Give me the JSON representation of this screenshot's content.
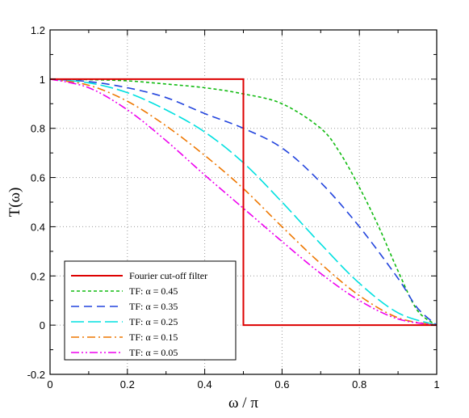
{
  "chart_data": {
    "type": "line",
    "xlabel": "ω / π",
    "ylabel": "T(ω)",
    "xlim": [
      0,
      1
    ],
    "ylim": [
      -0.2,
      1.2
    ],
    "xticks": [
      0,
      0.2,
      0.4,
      0.6,
      0.8,
      1
    ],
    "xtick_labels": [
      "0",
      "0.2",
      "0.4",
      "0.6",
      "0.8",
      "1"
    ],
    "yticks": [
      -0.2,
      0,
      0.2,
      0.4,
      0.6,
      0.8,
      1,
      1.2
    ],
    "ytick_labels": [
      "-0.2",
      "0",
      "0.2",
      "0.4",
      "0.6",
      "0.8",
      "1",
      "1.2"
    ],
    "grid": true,
    "legend_position": "bottom-left",
    "series": [
      {
        "name": "Fourier cut-off filter",
        "color": "#dd0000",
        "dash": "solid",
        "x": [
          0,
          0.5,
          0.5,
          1
        ],
        "y": [
          1,
          1,
          0,
          0
        ]
      },
      {
        "name": "TF: α = 0.45",
        "color": "#11bb11",
        "dash": "dashed-short",
        "x": [
          0,
          0.1,
          0.2,
          0.3,
          0.4,
          0.5,
          0.6,
          0.7,
          0.75,
          0.8,
          0.85,
          0.9,
          0.95,
          1
        ],
        "y": [
          1,
          0.998,
          0.993,
          0.98,
          0.965,
          0.94,
          0.9,
          0.8,
          0.7,
          0.56,
          0.4,
          0.22,
          0.06,
          0
        ]
      },
      {
        "name": "TF: α = 0.35",
        "color": "#2244dd",
        "dash": "dashed-long",
        "x": [
          0,
          0.1,
          0.2,
          0.3,
          0.4,
          0.5,
          0.6,
          0.7,
          0.8,
          0.9,
          0.95,
          1
        ],
        "y": [
          1,
          0.99,
          0.965,
          0.925,
          0.86,
          0.8,
          0.72,
          0.58,
          0.4,
          0.19,
          0.07,
          0
        ]
      },
      {
        "name": "TF: α = 0.25",
        "color": "#00e0e0",
        "dash": "long-dash",
        "x": [
          0,
          0.1,
          0.2,
          0.3,
          0.4,
          0.5,
          0.6,
          0.7,
          0.8,
          0.9,
          1
        ],
        "y": [
          1,
          0.985,
          0.945,
          0.875,
          0.785,
          0.66,
          0.5,
          0.33,
          0.17,
          0.05,
          0
        ]
      },
      {
        "name": "TF: α = 0.15",
        "color": "#ee7700",
        "dash": "dash-dot",
        "x": [
          0,
          0.1,
          0.2,
          0.3,
          0.4,
          0.5,
          0.6,
          0.7,
          0.8,
          0.9,
          1
        ],
        "y": [
          1,
          0.975,
          0.91,
          0.81,
          0.69,
          0.555,
          0.4,
          0.25,
          0.12,
          0.03,
          0
        ]
      },
      {
        "name": "TF: α = 0.05",
        "color": "#ee00ee",
        "dash": "dash-dot-dot",
        "x": [
          0,
          0.1,
          0.2,
          0.3,
          0.4,
          0.5,
          0.6,
          0.7,
          0.8,
          0.9,
          1
        ],
        "y": [
          1,
          0.965,
          0.875,
          0.75,
          0.61,
          0.475,
          0.34,
          0.21,
          0.1,
          0.025,
          0
        ]
      }
    ]
  }
}
